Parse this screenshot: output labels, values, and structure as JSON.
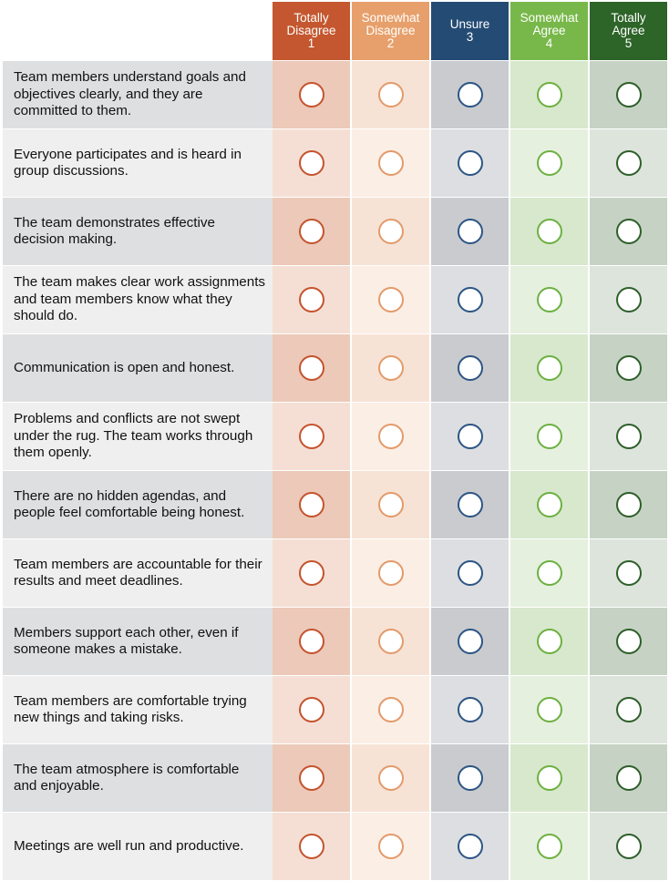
{
  "scale": {
    "columns": [
      {
        "label_line1": "Totally",
        "label_line2": "Disagree",
        "number": "1",
        "header_color": "#c4572f",
        "cell_color": "#ecc9b8",
        "alt_cell_color": "#f5dfd4",
        "radio_color": "#c4532e"
      },
      {
        "label_line1": "Somewhat",
        "label_line2": "Disagree",
        "number": "2",
        "header_color": "#e7a06b",
        "cell_color": "#f7e3d6",
        "alt_cell_color": "#fbeee5",
        "radio_color": "#e39a6a"
      },
      {
        "label_line1": "Unsure",
        "label_line2": "",
        "number": "3",
        "header_color": "#244b74",
        "cell_color": "#c9cbcf",
        "alt_cell_color": "#dcdee1",
        "radio_color": "#2d5584"
      },
      {
        "label_line1": "Somewhat",
        "label_line2": "Agree",
        "number": "4",
        "header_color": "#78b84a",
        "cell_color": "#d7e8cc",
        "alt_cell_color": "#e6f0df",
        "radio_color": "#6db041"
      },
      {
        "label_line1": "Totally",
        "label_line2": "Agree",
        "number": "5",
        "header_color": "#2d6428",
        "cell_color": "#c6d3c4",
        "alt_cell_color": "#dde4dc",
        "radio_color": "#2e5f2a"
      }
    ]
  },
  "statement_colors": {
    "dark": "#dedfe0",
    "light": "#efefef"
  },
  "statements": [
    {
      "text": "Team members understand goals and objectives clearly, and they are committed to them."
    },
    {
      "text": "Everyone participates and is heard in group discussions."
    },
    {
      "text": "The team demonstrates effective decision making."
    },
    {
      "text": "The team makes clear work assignments and team members know what they should do."
    },
    {
      "text": "Communication is open and honest."
    },
    {
      "text": "Problems and conflicts are not swept under the rug. The team works through them openly."
    },
    {
      "text": "There are no hidden agendas, and people feel comfortable being honest."
    },
    {
      "text": "Team members are accountable for their results and meet deadlines."
    },
    {
      "text": "Members support each other, even if someone makes a mistake."
    },
    {
      "text": "Team members are comfortable trying new things and taking risks."
    },
    {
      "text": "The team atmosphere is comfortable and enjoyable."
    },
    {
      "text": "Meetings are well run and productive."
    }
  ]
}
